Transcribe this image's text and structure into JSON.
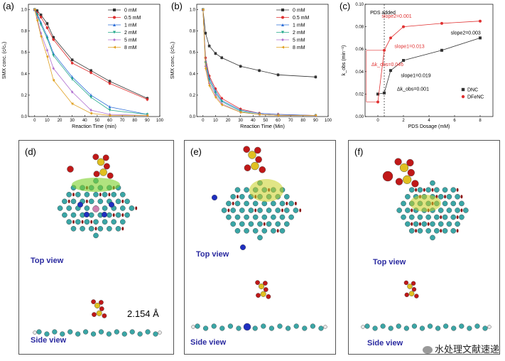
{
  "chart_data": [
    {
      "panel": "(a)",
      "type": "line",
      "xlabel": "Reaction Time (min)",
      "ylabel": "SMX conc. (c/c₀)",
      "xlim": [
        -5,
        100
      ],
      "ylim": [
        0,
        1.05
      ],
      "xticks": [
        "0",
        "10",
        "20",
        "30",
        "40",
        "50",
        "60",
        "70",
        "80",
        "90",
        "100"
      ],
      "yticks": [
        "0.0",
        "0.2",
        "0.4",
        "0.6",
        "0.8",
        "1.0"
      ],
      "legend": "top-right",
      "x": [
        0,
        2,
        5,
        10,
        15,
        30,
        45,
        60,
        90
      ],
      "series": [
        {
          "name": "0 mM",
          "color": "#333333",
          "marker": "square",
          "values": [
            1.0,
            0.99,
            0.95,
            0.87,
            0.74,
            0.53,
            0.43,
            0.33,
            0.17
          ]
        },
        {
          "name": "0.5 mM",
          "color": "#e03030",
          "marker": "circle",
          "values": [
            1.0,
            0.97,
            0.93,
            0.83,
            0.72,
            0.5,
            0.41,
            0.31,
            0.16
          ]
        },
        {
          "name": "1 mM",
          "color": "#2d6fd8",
          "marker": "triangle",
          "values": [
            1.0,
            0.96,
            0.88,
            0.75,
            0.59,
            0.37,
            0.2,
            0.09,
            0.02
          ]
        },
        {
          "name": "2 mM",
          "color": "#23a98a",
          "marker": "triangle-down",
          "values": [
            1.0,
            0.95,
            0.86,
            0.73,
            0.57,
            0.35,
            0.18,
            0.06,
            0.02
          ]
        },
        {
          "name": "5 mM",
          "color": "#b070d0",
          "marker": "diamond",
          "values": [
            1.0,
            0.92,
            0.78,
            0.62,
            0.45,
            0.23,
            0.06,
            0.02,
            0.01
          ]
        },
        {
          "name": "8 mM",
          "color": "#e0a020",
          "marker": "triangle-left",
          "values": [
            1.0,
            0.9,
            0.75,
            0.56,
            0.34,
            0.12,
            0.03,
            0.01,
            0.01
          ]
        }
      ]
    },
    {
      "panel": "(b)",
      "type": "line",
      "xlabel": "Reaction Time (Min)",
      "ylabel": "SMX conc. (c/c₀)",
      "xlim": [
        -5,
        100
      ],
      "ylim": [
        0,
        1.05
      ],
      "xticks": [
        "0",
        "10",
        "20",
        "30",
        "40",
        "50",
        "60",
        "70",
        "80",
        "90",
        "100"
      ],
      "yticks": [
        "0.0",
        "0.2",
        "0.4",
        "0.6",
        "0.8",
        "1.0"
      ],
      "legend": "top-right",
      "x": [
        0,
        2,
        5,
        10,
        15,
        30,
        45,
        60,
        90
      ],
      "series": [
        {
          "name": "0 mM",
          "color": "#333333",
          "marker": "square",
          "values": [
            1.0,
            0.78,
            0.66,
            0.59,
            0.55,
            0.47,
            0.43,
            0.39,
            0.37
          ]
        },
        {
          "name": "0.5 mM",
          "color": "#e03030",
          "marker": "circle",
          "values": [
            1.0,
            0.55,
            0.38,
            0.26,
            0.17,
            0.07,
            0.03,
            0.02,
            0.01
          ]
        },
        {
          "name": "1 mM",
          "color": "#2d6fd8",
          "marker": "triangle",
          "values": [
            1.0,
            0.52,
            0.36,
            0.24,
            0.15,
            0.06,
            0.03,
            0.02,
            0.01
          ]
        },
        {
          "name": "2 mM",
          "color": "#23a98a",
          "marker": "triangle-down",
          "values": [
            1.0,
            0.5,
            0.34,
            0.22,
            0.14,
            0.05,
            0.02,
            0.01,
            0.01
          ]
        },
        {
          "name": "5 mM",
          "color": "#b070d0",
          "marker": "diamond",
          "values": [
            1.0,
            0.47,
            0.31,
            0.2,
            0.12,
            0.04,
            0.02,
            0.01,
            0.01
          ]
        },
        {
          "name": "8 mM",
          "color": "#e0a020",
          "marker": "triangle-left",
          "values": [
            1.0,
            0.45,
            0.29,
            0.18,
            0.11,
            0.04,
            0.02,
            0.01,
            0.01
          ]
        }
      ]
    },
    {
      "panel": "(c)",
      "type": "line",
      "xlabel": "PDS Dosage (mM)",
      "ylabel": "k_obs (min⁻¹)",
      "xlim": [
        -1,
        9
      ],
      "ylim": [
        0,
        0.1
      ],
      "xticks": [
        "0",
        "2",
        "4",
        "6",
        "8"
      ],
      "yticks": [
        "0.00",
        "0.02",
        "0.04",
        "0.06",
        "0.08",
        "0.10"
      ],
      "legend": "bottom-right",
      "x": [
        0,
        0.5,
        1,
        2,
        5,
        8
      ],
      "series": [
        {
          "name": "DNC",
          "color": "#333333",
          "marker": "square",
          "values": [
            0.02,
            0.021,
            0.041,
            0.05,
            0.059,
            0.07
          ]
        },
        {
          "name": "DFeNC",
          "color": "#e03030",
          "marker": "circle",
          "values": [
            0.013,
            0.059,
            0.07,
            0.08,
            0.083,
            0.085
          ]
        }
      ],
      "annotations": {
        "pds_added": "PDS added",
        "slope2_red": "slope2=0.001",
        "slope1_red": "slope1=0.013",
        "dk_red": "Δk_obs=0.046",
        "slope2_black": "slope2=0.003",
        "slope1_black": "slope1=0.019",
        "dk_black": "Δk_obs=0.001"
      }
    }
  ],
  "panels": {
    "a": "(a)",
    "b": "(b)",
    "c": "(c)",
    "d": "(d)",
    "e": "(e)",
    "f": "(f)"
  },
  "mol": {
    "top_view": "Top view",
    "side_view": "Side view",
    "bond": "2.154 Å"
  },
  "watermark": "水处理文献速递",
  "colors": {
    "carbon": "#3aa6a6",
    "nitrogen": "#1f2fc0",
    "oxygen": "#c01818",
    "sulfur": "#e0c020",
    "hydrogen": "#e8e8e8",
    "iron": "#d080b0"
  }
}
